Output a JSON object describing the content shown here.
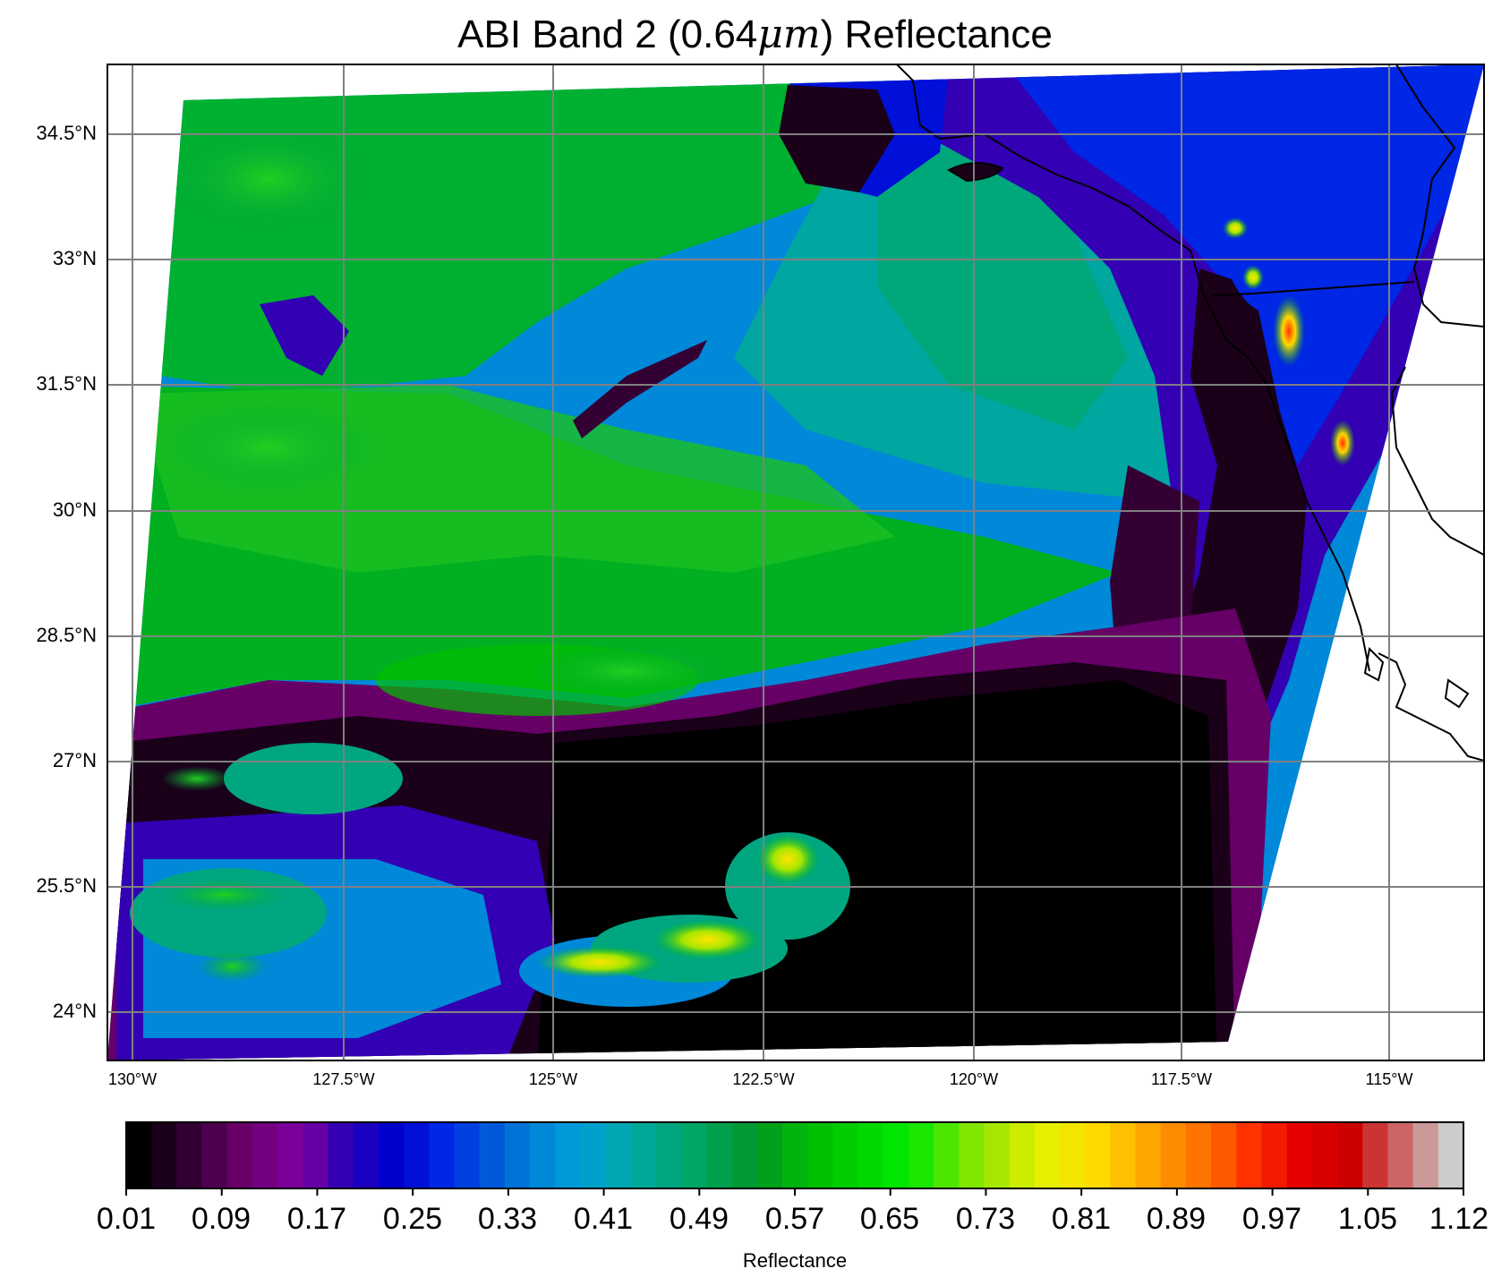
{
  "title": {
    "prefix": "ABI Band 2 (0.64",
    "unit": "μm",
    "suffix": ") Reflectance"
  },
  "map": {
    "latitude_labels": [
      "34.5°N",
      "33°N",
      "31.5°N",
      "30°N",
      "28.5°N",
      "27°N",
      "25.5°N",
      "24°N"
    ],
    "longitude_labels": [
      "130°W",
      "127.5°W",
      "125°W",
      "122.5°W",
      "120°W",
      "117.5°W",
      "115°W"
    ],
    "gridline_color": "#808080",
    "coastline_color": "#000000"
  },
  "colorbar": {
    "title": "Reflectance",
    "tick_labels": [
      "0.01",
      "0.09",
      "0.17",
      "0.25",
      "0.33",
      "0.41",
      "0.49",
      "0.57",
      "0.65",
      "0.73",
      "0.81",
      "0.89",
      "0.97",
      "1.05",
      "1.12"
    ],
    "colors": [
      "#000000",
      "#1a0019",
      "#330033",
      "#4d004d",
      "#660066",
      "#730080",
      "#7a0099",
      "#6600a6",
      "#3300b3",
      "#1a00c0",
      "#0000cc",
      "#0010d9",
      "#0026e6",
      "#0040e0",
      "#0059d9",
      "#0073d9",
      "#0088d9",
      "#0099d9",
      "#00a0cc",
      "#00a6b3",
      "#00a899",
      "#00a680",
      "#00a666",
      "#00a04d",
      "#009933",
      "#00a01a",
      "#00b30d",
      "#00c000",
      "#00cc00",
      "#00d900",
      "#00e600",
      "#1ae600",
      "#4de600",
      "#80e600",
      "#a6e600",
      "#ccec00",
      "#e6f000",
      "#f2e600",
      "#ffd900",
      "#ffc000",
      "#ffa600",
      "#ff8c00",
      "#ff7300",
      "#ff5900",
      "#ff3300",
      "#f21a00",
      "#e60000",
      "#d90000",
      "#cc0000",
      "#cc3333",
      "#cc6666",
      "#cc9999",
      "#cccccc"
    ]
  }
}
